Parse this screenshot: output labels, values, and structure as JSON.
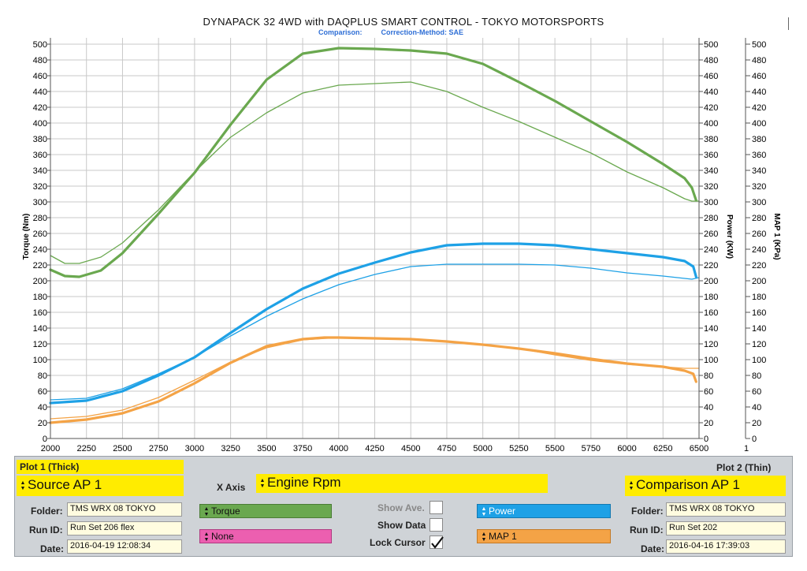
{
  "header": {
    "title": "DYNAPACK 32 4WD with DAQPLUS SMART CONTROL - TOKYO MOTORSPORTS",
    "comparison_label": "Comparison:",
    "correction_label": "Correction-Method: SAE"
  },
  "chart_data": {
    "type": "line",
    "xlim": [
      2000,
      6500
    ],
    "x_ticks": [
      "2000",
      "2250",
      "2500",
      "2750",
      "3000",
      "3250",
      "3500",
      "3750",
      "4000",
      "4250",
      "4500",
      "4750",
      "5000",
      "5250",
      "5500",
      "5750",
      "6000",
      "6250",
      "6500"
    ],
    "y_ticks_left": [
      "0",
      "20",
      "40",
      "60",
      "80",
      "100",
      "120",
      "140",
      "160",
      "180",
      "200",
      "220",
      "240",
      "260",
      "280",
      "300",
      "320",
      "340",
      "360",
      "380",
      "400",
      "420",
      "440",
      "460",
      "480",
      "500"
    ],
    "y_ticks_power": [
      "0",
      "20",
      "40",
      "60",
      "80",
      "100",
      "120",
      "140",
      "160",
      "180",
      "200",
      "220",
      "240",
      "260",
      "280",
      "300",
      "320",
      "340",
      "360",
      "380",
      "400",
      "420",
      "440",
      "460",
      "480",
      "500"
    ],
    "y_ticks_map": [
      "0",
      "20",
      "40",
      "60",
      "80",
      "100",
      "120",
      "140",
      "160",
      "180",
      "200",
      "220",
      "240",
      "260",
      "280",
      "300",
      "320",
      "340",
      "360",
      "380",
      "400",
      "420",
      "440",
      "460",
      "480",
      "500"
    ],
    "map_axis_bottom_label": "1",
    "ylabel_left": "Torque (Nm)",
    "ylabel_power": "Power (KW)",
    "ylabel_map": "MAP 1 (KPa)",
    "ylim": [
      0,
      500
    ],
    "grid": true,
    "colors": {
      "torque": "#6aa84f",
      "power": "#1ea1e6",
      "map": "#f4a346"
    },
    "series": [
      {
        "id": "torque_source",
        "color": "#6aa84f",
        "width": 3.2,
        "x": [
          2000,
          2100,
          2200,
          2350,
          2500,
          2750,
          3000,
          3250,
          3500,
          3750,
          4000,
          4250,
          4500,
          4750,
          5000,
          5250,
          5500,
          5750,
          6000,
          6250,
          6400,
          6450,
          6480
        ],
        "y": [
          214,
          206,
          205,
          213,
          235,
          285,
          337,
          398,
          455,
          488,
          495,
          494,
          492,
          488,
          475,
          452,
          428,
          402,
          376,
          348,
          330,
          318,
          302
        ]
      },
      {
        "id": "torque_compare",
        "color": "#6aa84f",
        "width": 1.3,
        "x": [
          2000,
          2100,
          2200,
          2350,
          2500,
          2750,
          3000,
          3250,
          3500,
          3750,
          4000,
          4250,
          4500,
          4750,
          5000,
          5250,
          5500,
          5750,
          6000,
          6250,
          6400,
          6450,
          6500
        ],
        "y": [
          232,
          222,
          222,
          230,
          248,
          290,
          338,
          382,
          413,
          438,
          448,
          450,
          452,
          440,
          420,
          402,
          382,
          362,
          338,
          318,
          304,
          301,
          301
        ]
      },
      {
        "id": "power_source",
        "color": "#1ea1e6",
        "width": 3.2,
        "x": [
          2000,
          2250,
          2500,
          2750,
          3000,
          3250,
          3500,
          3750,
          4000,
          4250,
          4500,
          4750,
          5000,
          5250,
          5500,
          5750,
          6000,
          6250,
          6400,
          6460,
          6480
        ],
        "y": [
          45,
          48,
          60,
          80,
          103,
          134,
          164,
          190,
          209,
          223,
          236,
          245,
          247,
          247,
          245,
          240,
          235,
          230,
          225,
          218,
          205
        ]
      },
      {
        "id": "power_compare",
        "color": "#1ea1e6",
        "width": 1.3,
        "x": [
          2000,
          2250,
          2500,
          2750,
          3000,
          3250,
          3500,
          3750,
          4000,
          4250,
          4500,
          4750,
          5000,
          5250,
          5500,
          5750,
          6000,
          6250,
          6400,
          6450,
          6500
        ],
        "y": [
          49,
          51,
          63,
          82,
          103,
          130,
          155,
          177,
          195,
          208,
          218,
          221,
          221,
          221,
          220,
          216,
          210,
          206,
          203,
          202,
          204
        ]
      },
      {
        "id": "map_source",
        "color": "#f4a346",
        "width": 3.2,
        "x": [
          2000,
          2250,
          2500,
          2750,
          3000,
          3250,
          3500,
          3750,
          3900,
          4000,
          4250,
          4500,
          4750,
          5000,
          5250,
          5500,
          5750,
          6000,
          6250,
          6400,
          6460,
          6480
        ],
        "y": [
          20,
          24,
          32,
          47,
          70,
          96,
          117,
          126,
          128,
          128,
          127,
          126,
          123,
          119,
          114,
          108,
          101,
          95,
          91,
          86,
          82,
          72
        ]
      },
      {
        "id": "map_compare",
        "color": "#f4a346",
        "width": 1.3,
        "x": [
          2000,
          2250,
          2500,
          2750,
          3000,
          3250,
          3500,
          3750,
          4000,
          4250,
          4500,
          4750,
          5000,
          5250,
          5500,
          5750,
          6000,
          6250,
          6400,
          6450,
          6500
        ],
        "y": [
          25,
          28,
          36,
          52,
          74,
          97,
          115,
          125,
          128,
          127,
          126,
          123,
          119,
          114,
          106,
          99,
          94,
          91,
          89,
          89,
          89
        ]
      }
    ]
  },
  "panel": {
    "plot1_label": "Plot 1 (Thick)",
    "plot2_label": "Plot 2 (Thin)",
    "source_value": "Source AP 1",
    "xaxis_label": "X Axis",
    "xaxis_value": "Engine Rpm",
    "comparison_value": "Comparison AP 1",
    "folder_label": "Folder:",
    "runid_label": "Run ID:",
    "date_label": "Date:",
    "left_folder": "TMS WRX 08 TOKYO",
    "left_runid": "Run Set 206 flex",
    "left_date": "2016-04-19 12:08:34",
    "right_folder": "TMS WRX 08 TOKYO",
    "right_runid": "Run Set 202",
    "right_date": "2016-04-16 17:39:03",
    "sel_torque": "Torque",
    "sel_none": "None",
    "sel_power": "Power",
    "sel_map": "MAP 1",
    "show_ave": "Show Ave.",
    "show_data": "Show Data",
    "lock_cursor": "Lock Cursor",
    "lock_checked": true
  }
}
